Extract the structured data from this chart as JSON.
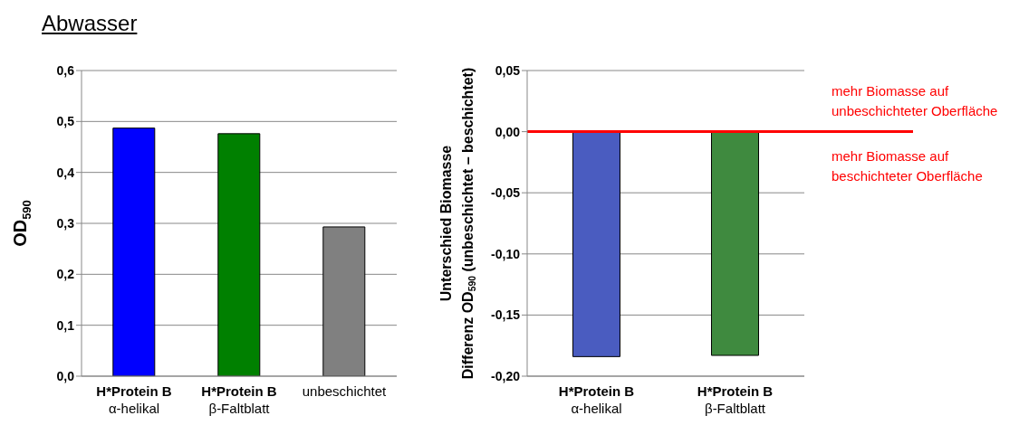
{
  "chart_data": [
    {
      "type": "bar",
      "title": "Abwasser",
      "ylabel": "OD$_{590}$",
      "categories": [
        "H*Protein B\nα-helikal",
        "H*Protein B\nβ-Faltblatt",
        "unbeschichtet"
      ],
      "values": [
        0.487,
        0.476,
        0.293
      ],
      "colors": [
        "#0000ff",
        "#008000",
        "#808080"
      ],
      "ylim": [
        0,
        0.6
      ],
      "yticks": [
        {
          "value": 0,
          "label": "0,0"
        },
        {
          "value": 0.1,
          "label": "0,1"
        },
        {
          "value": 0.2,
          "label": "0,2"
        },
        {
          "value": 0.3,
          "label": "0,3"
        },
        {
          "value": 0.4,
          "label": "0,4"
        },
        {
          "value": 0.5,
          "label": "0,5"
        },
        {
          "value": 0.6,
          "label": "0,6"
        }
      ],
      "grid": "y"
    },
    {
      "type": "bar",
      "ylabel": "Unterschied Biomasse\nDifferenz OD$_{590}$ (unbeschichtet – beschichtet)",
      "categories": [
        "H*Protein B\nα-helikal",
        "H*Protein B\nβ-Faltblatt"
      ],
      "values": [
        -0.184,
        -0.183
      ],
      "colors": [
        "#4a5cc0",
        "#3f8a3f"
      ],
      "ylim": [
        -0.2,
        0.05
      ],
      "yticks": [
        {
          "value": -0.2,
          "label": "-0,20"
        },
        {
          "value": -0.15,
          "label": "-0,15"
        },
        {
          "value": -0.1,
          "label": "-0,10"
        },
        {
          "value": -0.05,
          "label": "-0,05"
        },
        {
          "value": 0,
          "label": "0,00"
        },
        {
          "value": 0.05,
          "label": "0,05"
        }
      ],
      "grid": "y",
      "ref_lines": [
        {
          "axis": "y",
          "value": 0,
          "color": "#ff0000"
        }
      ],
      "annotations": [
        "mehr Biomasse auf\nunbeschichteter Oberfläche",
        "mehr Biomasse auf\nbeschichteter Oberfläche"
      ]
    }
  ]
}
